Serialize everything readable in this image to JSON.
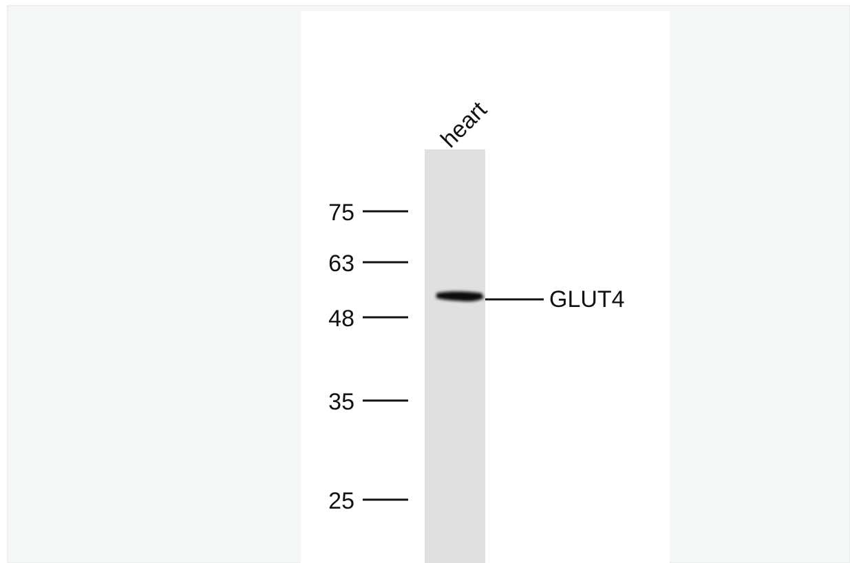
{
  "figure": {
    "lane_label": "heart",
    "markers": [
      75,
      63,
      48,
      35,
      25
    ],
    "band_label": "GLUT4"
  }
}
